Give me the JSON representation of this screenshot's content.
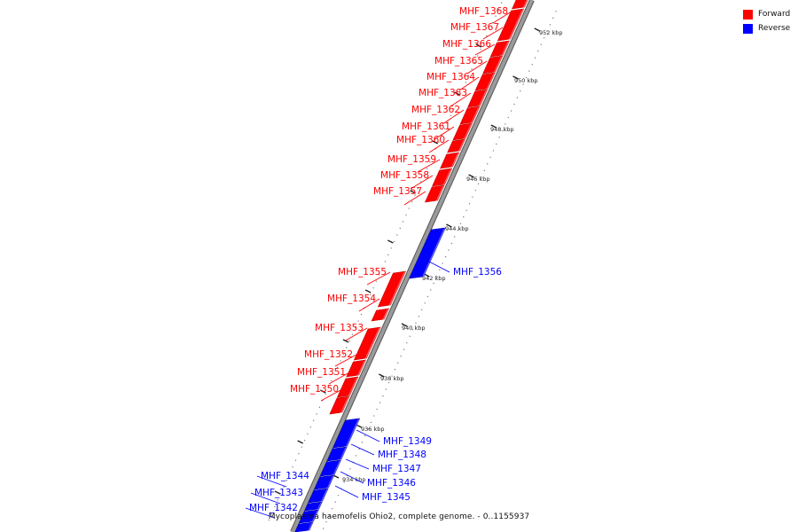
{
  "legend": {
    "forward_label": "Forward",
    "reverse_label": "Reverse"
  },
  "caption": "Mycoplasma haemofelis Ohio2, complete genome. - 0..1155937",
  "colors": {
    "forward": "#ff0000",
    "reverse": "#0000ff",
    "backbone": "#9a9a9a",
    "tick": "#222222"
  },
  "scale_labels": [
    "952 kbp",
    "950 kbp",
    "948 kbp",
    "946 kbp",
    "944 kbp",
    "942 kbp",
    "940 kbp",
    "938 kbp",
    "936 kbp",
    "934 kbp"
  ],
  "genes": [
    {
      "id": "MHF_1368",
      "strand": "forward"
    },
    {
      "id": "MHF_1367",
      "strand": "forward"
    },
    {
      "id": "MHF_1366",
      "strand": "forward"
    },
    {
      "id": "MHF_1365",
      "strand": "forward"
    },
    {
      "id": "MHF_1364",
      "strand": "forward"
    },
    {
      "id": "MHF_1363",
      "strand": "forward"
    },
    {
      "id": "MHF_1362",
      "strand": "forward"
    },
    {
      "id": "MHF_1361",
      "strand": "forward"
    },
    {
      "id": "MHF_1360",
      "strand": "forward"
    },
    {
      "id": "MHF_1359",
      "strand": "forward"
    },
    {
      "id": "MHF_1358",
      "strand": "forward"
    },
    {
      "id": "MHF_1357",
      "strand": "forward"
    },
    {
      "id": "MHF_1356",
      "strand": "reverse"
    },
    {
      "id": "MHF_1355",
      "strand": "forward"
    },
    {
      "id": "MHF_1354",
      "strand": "forward"
    },
    {
      "id": "MHF_1353",
      "strand": "forward"
    },
    {
      "id": "MHF_1352",
      "strand": "forward"
    },
    {
      "id": "MHF_1351",
      "strand": "forward"
    },
    {
      "id": "MHF_1350",
      "strand": "forward"
    },
    {
      "id": "MHF_1349",
      "strand": "reverse"
    },
    {
      "id": "MHF_1348",
      "strand": "reverse"
    },
    {
      "id": "MHF_1347",
      "strand": "reverse"
    },
    {
      "id": "MHF_1346",
      "strand": "reverse"
    },
    {
      "id": "MHF_1345",
      "strand": "reverse"
    },
    {
      "id": "MHF_1344",
      "strand": "reverse"
    },
    {
      "id": "MHF_1343",
      "strand": "reverse"
    },
    {
      "id": "MHF_1342",
      "strand": "reverse"
    }
  ]
}
